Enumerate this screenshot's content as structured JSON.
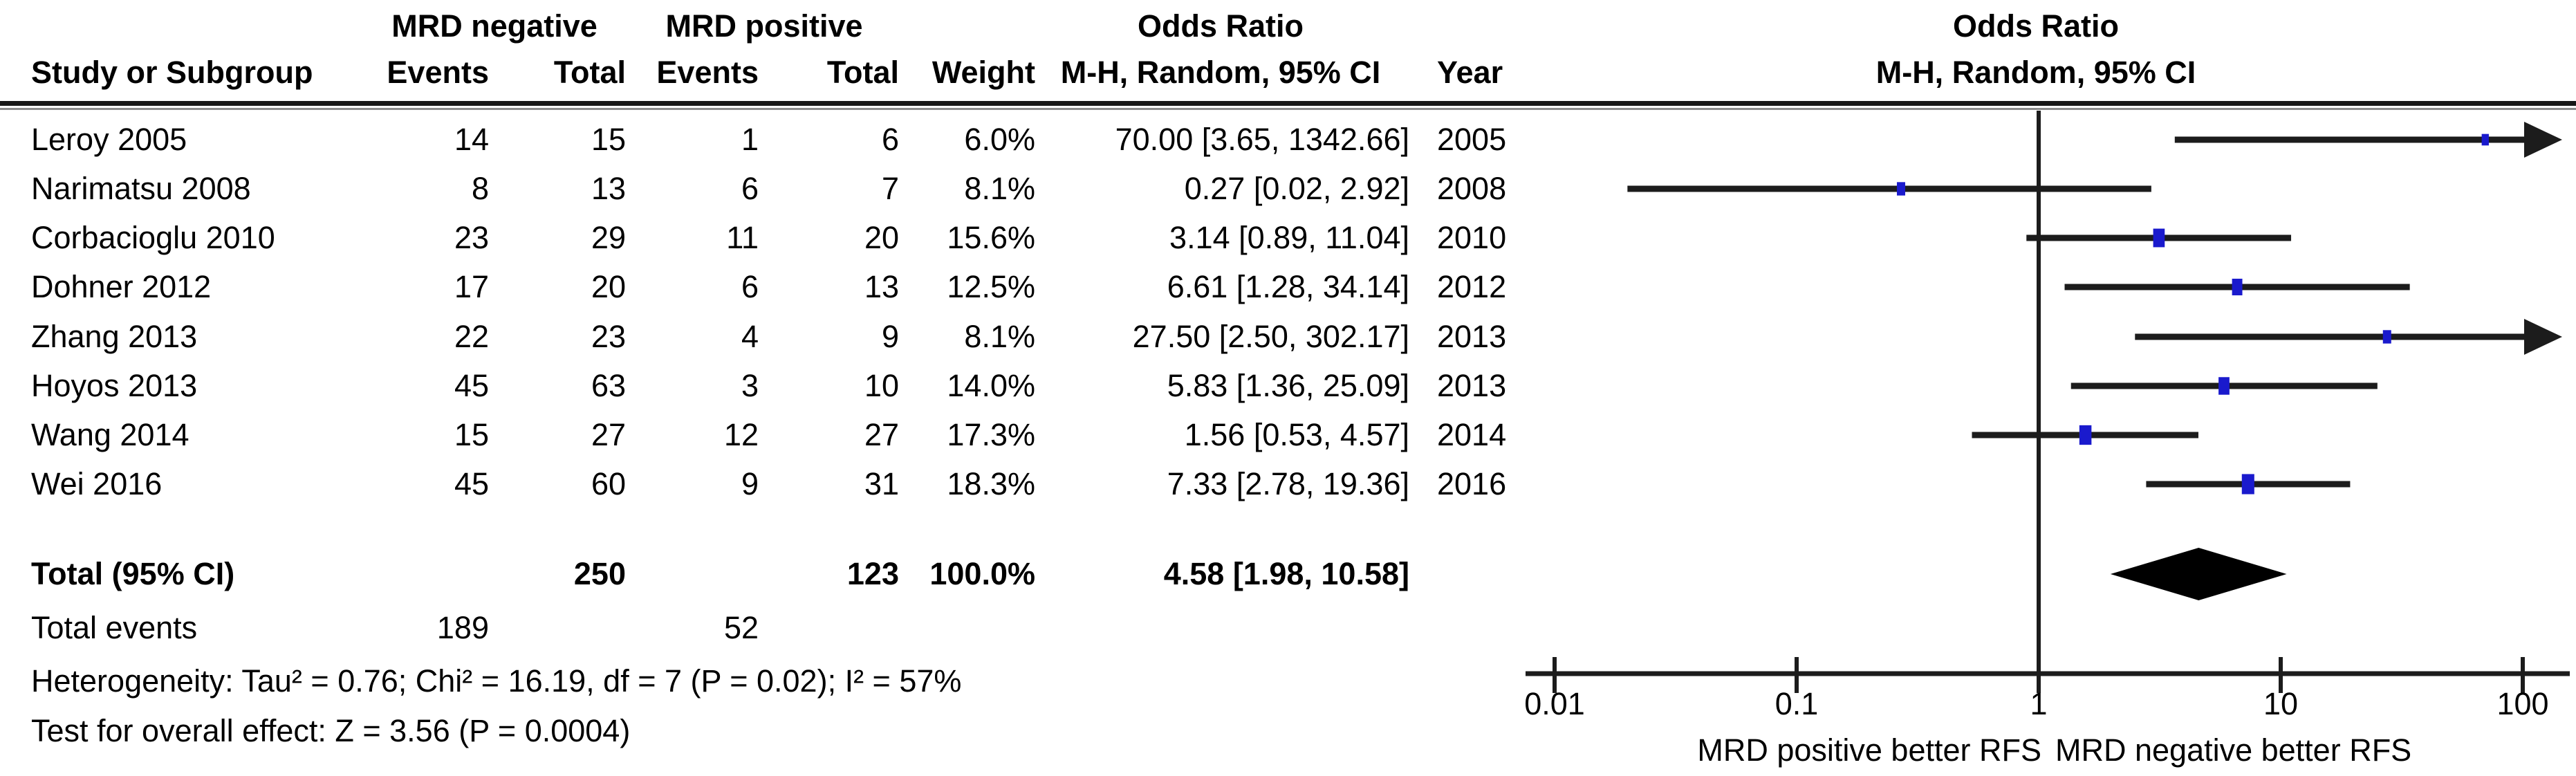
{
  "header": {
    "group_mrd_negative": "MRD negative",
    "group_mrd_positive": "MRD positive",
    "group_or_left": "Odds Ratio",
    "group_or_right": "Odds Ratio",
    "study": "Study or Subgroup",
    "events1": "Events",
    "total1": "Total",
    "events2": "Events",
    "total2": "Total",
    "weight": "Weight",
    "mh_left": "M-H, Random, 95% CI",
    "year": "Year",
    "mh_right": "M-H, Random, 95% CI"
  },
  "chart_data": {
    "type": "scatter",
    "subtype": "forest-plot",
    "effect_measure": "Odds Ratio, M-H, Random, 95% CI",
    "x_scale": "log10",
    "x_range": [
      0.01,
      100
    ],
    "x_ticks": [
      "0.01",
      "0.1",
      "1",
      "10",
      "100"
    ],
    "x_label_left": "MRD positive better RFS",
    "x_label_right": "MRD negative better RFS",
    "marker_color": "#1a1acd",
    "line_color": "#1c1c1c",
    "studies": [
      {
        "study": "Leroy 2005",
        "events_neg": "14",
        "total_neg": "15",
        "events_pos": "1",
        "total_pos": "6",
        "weight": "6.0%",
        "weight_pct": 6.0,
        "or_text": "70.00 [3.65, 1342.66]",
        "year": "2005",
        "or": 70.0,
        "ci_low": 3.65,
        "ci_high": 1342.66
      },
      {
        "study": "Narimatsu 2008",
        "events_neg": "8",
        "total_neg": "13",
        "events_pos": "6",
        "total_pos": "7",
        "weight": "8.1%",
        "weight_pct": 8.1,
        "or_text": "0.27 [0.02, 2.92]",
        "year": "2008",
        "or": 0.27,
        "ci_low": 0.02,
        "ci_high": 2.92
      },
      {
        "study": "Corbacioglu 2010",
        "events_neg": "23",
        "total_neg": "29",
        "events_pos": "11",
        "total_pos": "20",
        "weight": "15.6%",
        "weight_pct": 15.6,
        "or_text": "3.14 [0.89, 11.04]",
        "year": "2010",
        "or": 3.14,
        "ci_low": 0.89,
        "ci_high": 11.04
      },
      {
        "study": "Dohner 2012",
        "events_neg": "17",
        "total_neg": "20",
        "events_pos": "6",
        "total_pos": "13",
        "weight": "12.5%",
        "weight_pct": 12.5,
        "or_text": "6.61 [1.28, 34.14]",
        "year": "2012",
        "or": 6.61,
        "ci_low": 1.28,
        "ci_high": 34.14
      },
      {
        "study": "Zhang 2013",
        "events_neg": "22",
        "total_neg": "23",
        "events_pos": "4",
        "total_pos": "9",
        "weight": "8.1%",
        "weight_pct": 8.1,
        "or_text": "27.50 [2.50, 302.17]",
        "year": "2013",
        "or": 27.5,
        "ci_low": 2.5,
        "ci_high": 302.17
      },
      {
        "study": "Hoyos 2013",
        "events_neg": "45",
        "total_neg": "63",
        "events_pos": "3",
        "total_pos": "10",
        "weight": "14.0%",
        "weight_pct": 14.0,
        "or_text": "5.83 [1.36, 25.09]",
        "year": "2013",
        "or": 5.83,
        "ci_low": 1.36,
        "ci_high": 25.09
      },
      {
        "study": "Wang 2014",
        "events_neg": "15",
        "total_neg": "27",
        "events_pos": "12",
        "total_pos": "27",
        "weight": "17.3%",
        "weight_pct": 17.3,
        "or_text": "1.56 [0.53, 4.57]",
        "year": "2014",
        "or": 1.56,
        "ci_low": 0.53,
        "ci_high": 4.57
      },
      {
        "study": "Wei 2016",
        "events_neg": "45",
        "total_neg": "60",
        "events_pos": "9",
        "total_pos": "31",
        "weight": "18.3%",
        "weight_pct": 18.3,
        "or_text": "7.33 [2.78, 19.36]",
        "year": "2016",
        "or": 7.33,
        "ci_low": 2.78,
        "ci_high": 19.36
      }
    ],
    "total": {
      "label": "Total (95% CI)",
      "total_neg": "250",
      "total_pos": "123",
      "weight": "100.0%",
      "or_text": "4.58 [1.98, 10.58]",
      "or": 4.58,
      "ci_low": 1.98,
      "ci_high": 10.58
    },
    "total_events": {
      "label": "Total events",
      "events_neg": "189",
      "events_pos": "52"
    },
    "heterogeneity": "Heterogeneity: Tau² = 0.76; Chi² = 16.19, df = 7 (P = 0.02); I² = 57%",
    "overall_effect": "Test for overall effect: Z = 3.56 (P = 0.0004)"
  }
}
